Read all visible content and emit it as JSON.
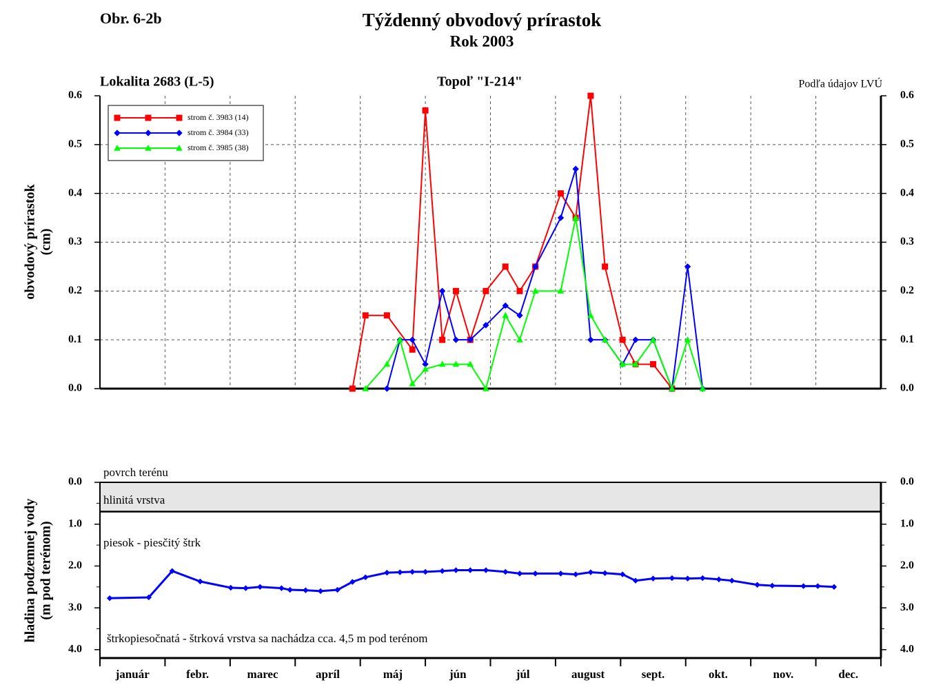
{
  "chart_data": [
    {
      "type": "line",
      "figure_label": "Obr. 6-2b",
      "title": "Týždenný obvodový prírastok",
      "subtitle": "Rok 2003",
      "location": "Lokalita 2683 (L-5)",
      "species": "Topoľ \"I-214\"",
      "source": "Podľa údajov LVÚ",
      "ylabel": [
        "obvodový prírastok",
        "(cm)"
      ],
      "xlim": [
        0,
        12
      ],
      "ylim": [
        0,
        0.6
      ],
      "yticks": [
        {
          "value": 0,
          "label": "0.0"
        },
        0.1,
        0.2,
        0.3,
        0.4,
        0.5,
        0.6
      ],
      "grid": true,
      "legend": "upper left",
      "series": [
        {
          "name": "strom č. 3983 (14)",
          "color": "#ff0000",
          "marker": "square",
          "x": [
            3.88,
            4.08,
            4.41,
            4.8,
            5.0,
            5.26,
            5.47,
            5.69,
            5.93,
            6.23,
            6.45,
            6.69,
            7.08,
            7.31,
            7.54,
            7.76,
            8.03,
            8.23,
            8.5,
            8.79
          ],
          "values": [
            0,
            0.15,
            0.15,
            0.08,
            0.57,
            0.1,
            0.2,
            0.1,
            0.2,
            0.25,
            0.2,
            0.25,
            0.4,
            0.35,
            0.6,
            0.25,
            0.1,
            0.05,
            0.05,
            0
          ]
        },
        {
          "name": "strom č. 3984 (33)",
          "color": "#0000ff",
          "marker": "diamond",
          "x": [
            4.41,
            4.61,
            4.8,
            5.0,
            5.26,
            5.47,
            5.69,
            5.93,
            6.23,
            6.45,
            6.69,
            7.08,
            7.31,
            7.54,
            7.76,
            8.03,
            8.23,
            8.5,
            8.79,
            9.03,
            9.26
          ],
          "values": [
            0,
            0.1,
            0.1,
            0.05,
            0.2,
            0.1,
            0.1,
            0.13,
            0.17,
            0.15,
            0.25,
            0.35,
            0.45,
            0.1,
            0.1,
            0.05,
            0.1,
            0.1,
            0,
            0.25,
            0
          ]
        },
        {
          "name": "strom č. 3985 (38)",
          "color": "#00ff00",
          "marker": "triangle",
          "x": [
            4.08,
            4.41,
            4.61,
            4.8,
            5.0,
            5.26,
            5.47,
            5.69,
            5.93,
            6.23,
            6.45,
            6.69,
            7.08,
            7.31,
            7.54,
            7.76,
            8.03,
            8.23,
            8.5,
            8.79,
            9.03,
            9.26
          ],
          "values": [
            0,
            0.05,
            0.1,
            0.01,
            0.04,
            0.05,
            0.05,
            0.05,
            0,
            0.15,
            0.1,
            0.2,
            0.2,
            0.35,
            0.15,
            0.1,
            0.05,
            0.05,
            0.1,
            0,
            0.1,
            0
          ]
        }
      ]
    },
    {
      "type": "line",
      "ylabel": [
        "hladina podzemnej vody",
        "(m pod terénom)"
      ],
      "categories": [
        "január",
        "febr.",
        "marec",
        "apríl",
        "máj",
        "jún",
        "júl",
        "august",
        "sept.",
        "okt.",
        "nov.",
        "dec."
      ],
      "xlim": [
        0,
        12
      ],
      "ylim": [
        0,
        4.2
      ],
      "inverted": true,
      "yticks": [
        {
          "value": 0,
          "label": "0.0"
        },
        {
          "value": 1,
          "label": "1.0"
        },
        {
          "value": 2,
          "label": "2.0"
        },
        {
          "value": 3,
          "label": "3.0"
        },
        {
          "value": 4,
          "label": "4.0"
        }
      ],
      "layer_depth": 0.7,
      "layer_color": "#e6e6e6",
      "annotations": [
        "povrch terénu",
        "hlinitá vrstva",
        "piesok - piesčitý štrk",
        "štrkopiesočnatá - štrková vrstva sa nachádza cca. 4,5 m pod terénom"
      ],
      "series": [
        {
          "color": "#0000ff",
          "marker": "diamond",
          "x": [
            0.15,
            0.75,
            1.11,
            1.54,
            2.01,
            2.24,
            2.46,
            2.79,
            2.92,
            3.16,
            3.39,
            3.65,
            3.88,
            4.08,
            4.41,
            4.61,
            4.8,
            5.0,
            5.26,
            5.47,
            5.69,
            5.93,
            6.23,
            6.45,
            6.69,
            7.08,
            7.31,
            7.54,
            7.76,
            8.03,
            8.23,
            8.5,
            8.79,
            9.03,
            9.26,
            9.51,
            9.71,
            10.1,
            10.33,
            10.81,
            11.03,
            11.28
          ],
          "values": [
            2.77,
            2.75,
            2.12,
            2.37,
            2.52,
            2.53,
            2.5,
            2.53,
            2.57,
            2.58,
            2.6,
            2.57,
            2.38,
            2.27,
            2.16,
            2.15,
            2.14,
            2.14,
            2.12,
            2.1,
            2.1,
            2.1,
            2.14,
            2.18,
            2.18,
            2.18,
            2.2,
            2.15,
            2.17,
            2.2,
            2.35,
            2.3,
            2.29,
            2.3,
            2.29,
            2.32,
            2.35,
            2.45,
            2.47,
            2.48,
            2.48,
            2.5
          ]
        }
      ]
    }
  ]
}
